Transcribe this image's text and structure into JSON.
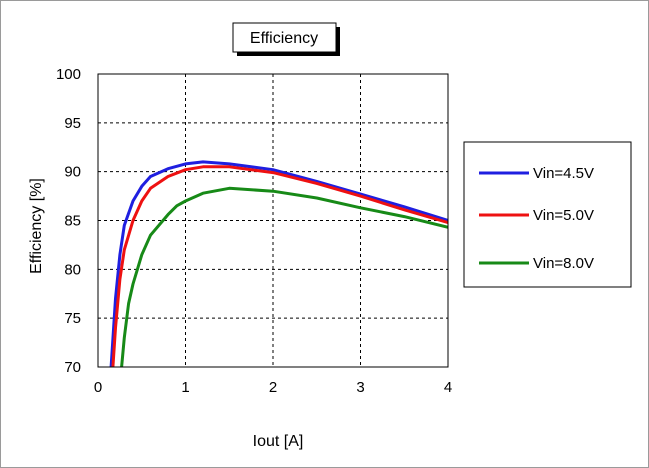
{
  "chart_data": {
    "type": "line",
    "title": "Efficiency",
    "xlabel": "Iout [A]",
    "ylabel": "Efficiency [%]",
    "xlim": [
      0,
      4
    ],
    "ylim": [
      70,
      100
    ],
    "xticks": [
      0,
      1,
      2,
      3,
      4
    ],
    "yticks": [
      70,
      75,
      80,
      85,
      90,
      95,
      100
    ],
    "grid": true,
    "legend_position": "right",
    "series": [
      {
        "name": "Vin=4.5V",
        "color": "#1f1fe0",
        "x": [
          0.15,
          0.2,
          0.25,
          0.3,
          0.4,
          0.5,
          0.6,
          0.8,
          1.0,
          1.2,
          1.5,
          2.0,
          2.5,
          3.0,
          3.5,
          4.0
        ],
        "y": [
          70,
          77,
          81.5,
          84.5,
          87,
          88.5,
          89.5,
          90.3,
          90.8,
          91,
          90.8,
          90.2,
          89,
          87.7,
          86.4,
          85
        ]
      },
      {
        "name": "Vin=5.0V",
        "color": "#ee1111",
        "x": [
          0.17,
          0.2,
          0.25,
          0.3,
          0.4,
          0.5,
          0.6,
          0.8,
          1.0,
          1.2,
          1.5,
          2.0,
          2.5,
          3.0,
          3.5,
          4.0
        ],
        "y": [
          70,
          74,
          79,
          82,
          85,
          87,
          88.3,
          89.5,
          90.2,
          90.5,
          90.5,
          89.9,
          88.8,
          87.5,
          86.1,
          84.8
        ]
      },
      {
        "name": "Vin=8.0V",
        "color": "#178a17",
        "x": [
          0.27,
          0.3,
          0.35,
          0.4,
          0.5,
          0.6,
          0.8,
          0.9,
          1.0,
          1.2,
          1.5,
          2.0,
          2.5,
          3.0,
          3.5,
          4.0
        ],
        "y": [
          70,
          73,
          76.5,
          78.5,
          81.5,
          83.5,
          85.6,
          86.5,
          87,
          87.8,
          88.3,
          88,
          87.3,
          86.3,
          85.4,
          84.3
        ]
      }
    ]
  }
}
